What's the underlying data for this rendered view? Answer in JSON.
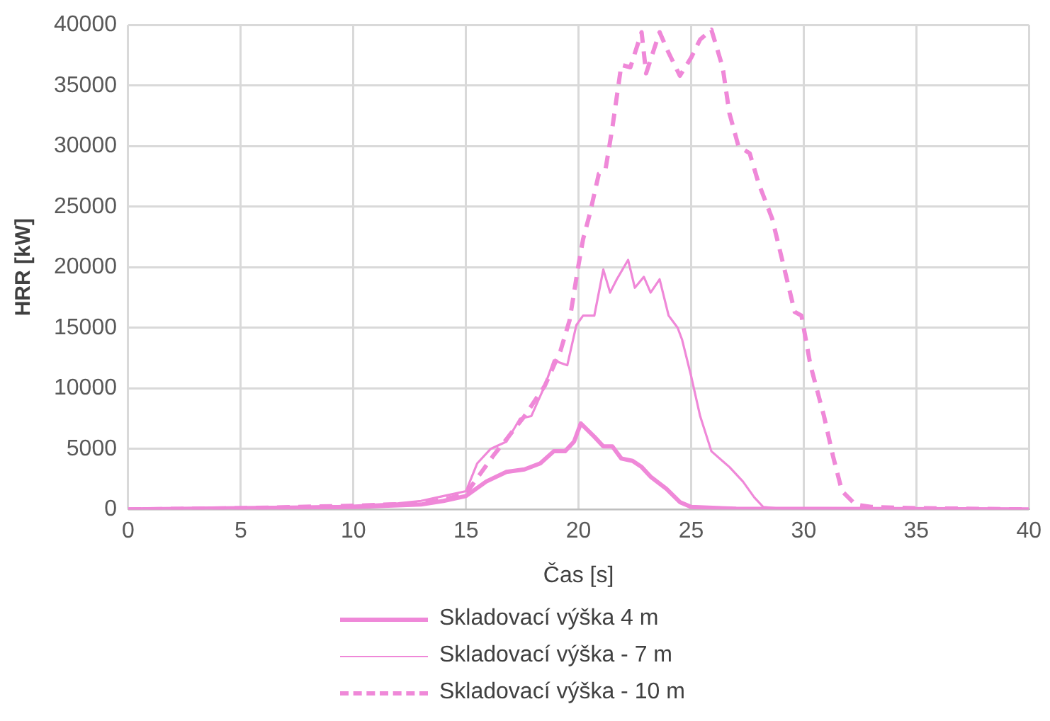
{
  "chart_data": {
    "type": "line",
    "xlabel": "Čas [s]",
    "ylabel": "HRR [kW]",
    "xlim": [
      0,
      40
    ],
    "xticks": [
      0,
      5,
      10,
      15,
      20,
      25,
      30,
      35,
      40
    ],
    "ylim": [
      0,
      40000
    ],
    "yticks": [
      0,
      5000,
      10000,
      15000,
      20000,
      25000,
      30000,
      35000,
      40000
    ],
    "grid": true,
    "legend": "bottom",
    "marker": "none",
    "series": [
      {
        "name": "Skladovací výška 4 m",
        "color": "#ef88d8",
        "line_style": "solid",
        "x": [
          0,
          5,
          10,
          13,
          14,
          15,
          15.9,
          16.8,
          17.6,
          18.3,
          18.9,
          19.4,
          19.8,
          20.1,
          20.7,
          21.1,
          21.5,
          21.9,
          22.4,
          22.8,
          23.2,
          23.9,
          24.5,
          25,
          27,
          40
        ],
        "values": [
          0,
          100,
          200,
          400,
          700,
          1100,
          2300,
          3100,
          3300,
          3800,
          4800,
          4800,
          5600,
          7100,
          6000,
          5200,
          5200,
          4200,
          4000,
          3500,
          2700,
          1700,
          600,
          200,
          50,
          0
        ]
      },
      {
        "name": "Skladovací výška - 7 m",
        "color": "#ef88d8",
        "line_style": "solid",
        "x": [
          0,
          5,
          10,
          12,
          13,
          14,
          15,
          15.5,
          16.1,
          16.8,
          17.4,
          17.9,
          18.5,
          18.9,
          19.5,
          19.9,
          20.2,
          20.7,
          21.1,
          21.4,
          21.7,
          22.2,
          22.5,
          22.9,
          23.2,
          23.6,
          24,
          24.4,
          24.6,
          25,
          25.4,
          25.9,
          26.7,
          27.3,
          27.8,
          28.2,
          29,
          40
        ],
        "values": [
          0,
          100,
          300,
          500,
          700,
          1100,
          1500,
          3800,
          5000,
          5600,
          7500,
          7700,
          10200,
          12300,
          11900,
          15200,
          16000,
          16000,
          19800,
          17900,
          19000,
          20600,
          18300,
          19200,
          17900,
          19000,
          16000,
          15000,
          14000,
          11000,
          7700,
          4800,
          3500,
          2300,
          1000,
          200,
          50,
          0
        ]
      },
      {
        "name": "Skladovací výška - 10 m",
        "color": "#ef88d8",
        "line_style": "dashed",
        "x": [
          0,
          5,
          10,
          13,
          14,
          15,
          16.2,
          16.8,
          17.6,
          18.5,
          19.2,
          19.6,
          20,
          20.2,
          20.5,
          20.9,
          21.2,
          21.5,
          21.9,
          22.3,
          22.8,
          23,
          23.6,
          24,
          24.5,
          25,
          25.4,
          25.9,
          26.4,
          26.7,
          27.1,
          27.6,
          28,
          28.6,
          29.2,
          29.6,
          29.9,
          30.3,
          30.9,
          31.3,
          31.7,
          32.3,
          33,
          35,
          40
        ],
        "values": [
          0,
          100,
          300,
          500,
          800,
          1300,
          4400,
          5800,
          7700,
          10200,
          13100,
          15600,
          20200,
          22300,
          24400,
          27700,
          28100,
          31500,
          36700,
          36500,
          39400,
          36000,
          39400,
          37700,
          35800,
          37300,
          38800,
          39600,
          36500,
          32700,
          30000,
          29400,
          26900,
          24000,
          19400,
          16300,
          16000,
          11900,
          7700,
          4400,
          1500,
          400,
          200,
          100,
          0
        ]
      }
    ]
  }
}
